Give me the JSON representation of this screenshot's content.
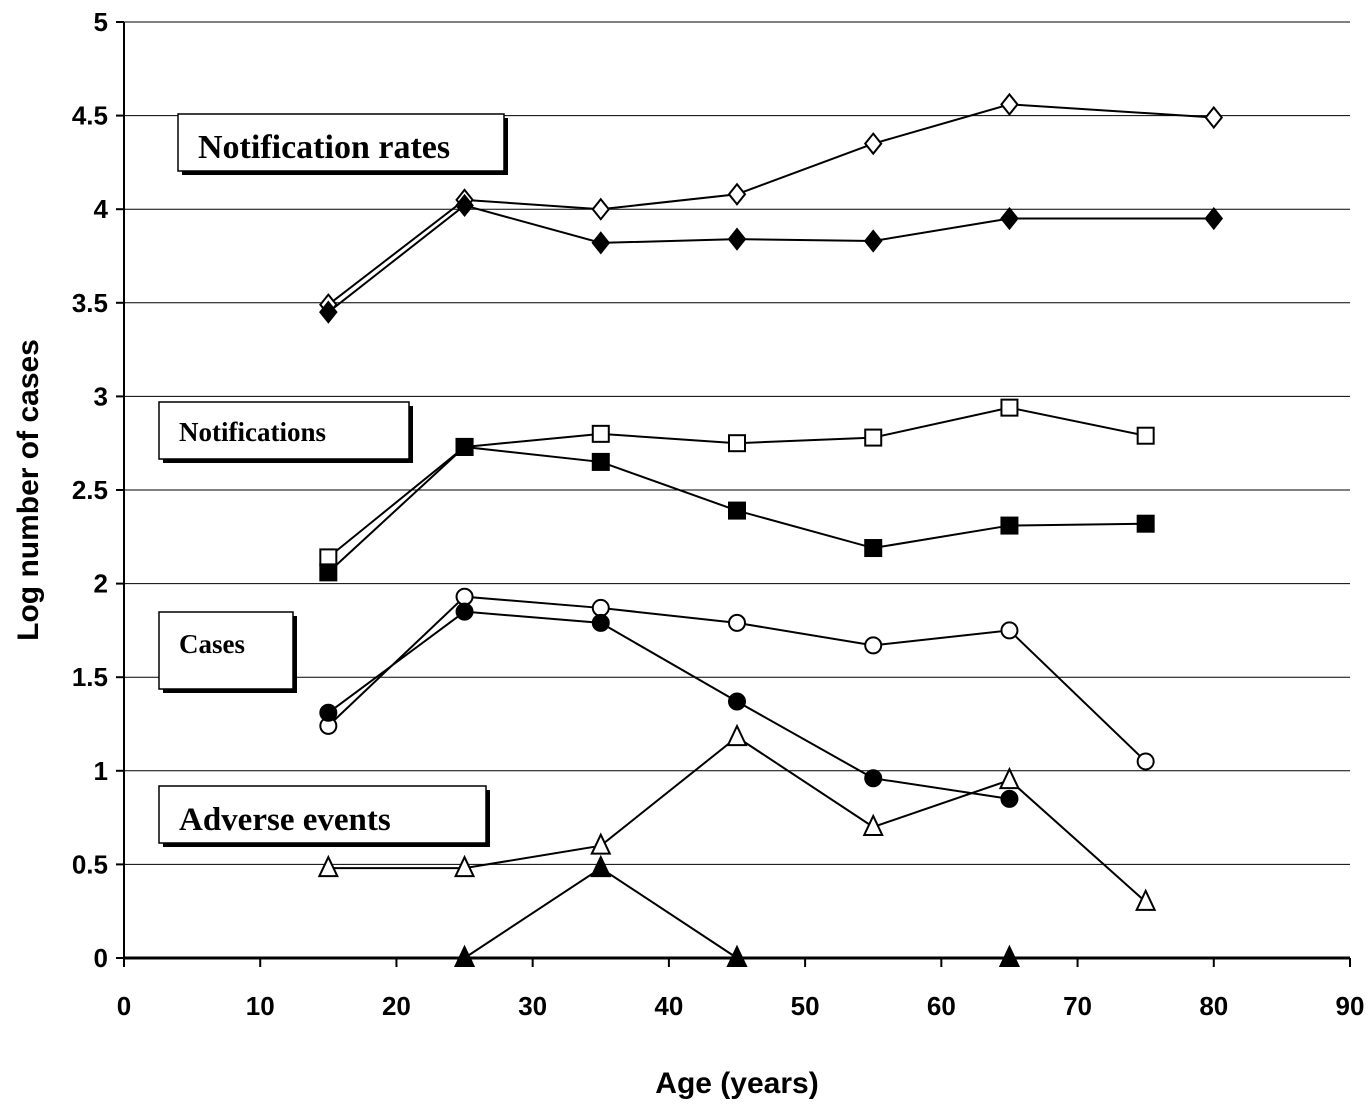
{
  "chart_data": {
    "type": "line",
    "title": "",
    "xlabel": "Age (years)",
    "ylabel": "Log number of cases",
    "xlim": [
      0,
      90
    ],
    "ylim": [
      0,
      5
    ],
    "xticks": [
      0,
      10,
      20,
      30,
      40,
      50,
      60,
      70,
      80,
      90
    ],
    "yticks": [
      0,
      0.5,
      1,
      1.5,
      2,
      2.5,
      3,
      3.5,
      4,
      4.5,
      5
    ],
    "ytick_labels": [
      "0",
      "0.5",
      "1",
      "1.5",
      "2",
      "2.5",
      "3",
      "3.5",
      "4",
      "4.5",
      "5"
    ],
    "grid": "horizontal",
    "annotations": [
      {
        "text": "Notification rates",
        "group": "notification-rates"
      },
      {
        "text": "Notifications",
        "group": "notifications"
      },
      {
        "text": "Cases",
        "group": "cases"
      },
      {
        "text": "Adverse events",
        "group": "adverse-events"
      }
    ],
    "series": [
      {
        "group": "notification-rates",
        "marker": "diamond",
        "fill": "open",
        "x": [
          15,
          25,
          35,
          45,
          55,
          65,
          80
        ],
        "y": [
          3.49,
          4.05,
          4.0,
          4.08,
          4.35,
          4.56,
          4.49
        ]
      },
      {
        "group": "notification-rates",
        "marker": "diamond",
        "fill": "filled",
        "x": [
          15,
          25,
          35,
          45,
          55,
          65,
          80
        ],
        "y": [
          3.45,
          4.02,
          3.82,
          3.84,
          3.83,
          3.95,
          3.95
        ]
      },
      {
        "group": "notifications",
        "marker": "square",
        "fill": "open",
        "x": [
          15,
          25,
          35,
          45,
          55,
          65,
          75
        ],
        "y": [
          2.14,
          2.73,
          2.8,
          2.75,
          2.78,
          2.94,
          2.79
        ]
      },
      {
        "group": "notifications",
        "marker": "square",
        "fill": "filled",
        "x": [
          15,
          25,
          35,
          45,
          55,
          65,
          75
        ],
        "y": [
          2.06,
          2.73,
          2.65,
          2.39,
          2.19,
          2.31,
          2.32
        ]
      },
      {
        "group": "cases",
        "marker": "circle",
        "fill": "open",
        "x": [
          15,
          25,
          35,
          45,
          55,
          65,
          75
        ],
        "y": [
          1.24,
          1.93,
          1.87,
          1.79,
          1.67,
          1.75,
          1.05
        ]
      },
      {
        "group": "cases",
        "marker": "circle",
        "fill": "filled",
        "x": [
          15,
          25,
          35,
          45,
          55,
          65
        ],
        "y": [
          1.31,
          1.85,
          1.79,
          1.37,
          0.96,
          0.85
        ]
      },
      {
        "group": "adverse-events",
        "marker": "triangle",
        "fill": "open",
        "x": [
          15,
          25,
          35,
          45,
          55,
          65,
          75
        ],
        "y": [
          0.48,
          0.48,
          0.6,
          1.18,
          0.7,
          0.95,
          0.3
        ]
      },
      {
        "group": "adverse-events",
        "marker": "triangle",
        "fill": "filled",
        "x": [
          25,
          35,
          45,
          65
        ],
        "y": [
          0,
          0.48,
          0,
          0
        ],
        "segments": [
          [
            0,
            1,
            2
          ]
        ]
      }
    ]
  }
}
